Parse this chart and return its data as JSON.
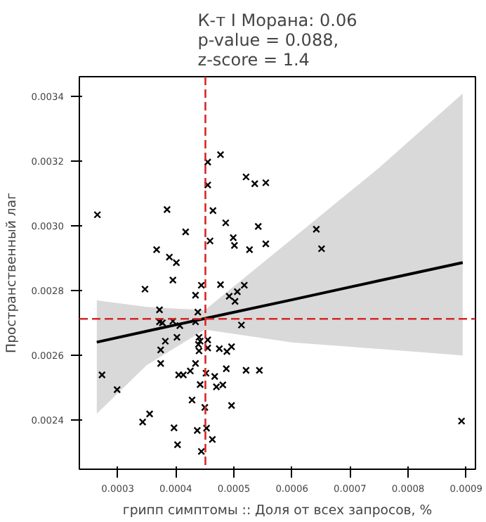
{
  "chart_data": {
    "type": "scatter",
    "title": "К-т I Морана: 0.06\np-value = 0.088,\nz-score = 1.4",
    "xlabel": "грипп симптомы :: Доля от всех запросов, %",
    "ylabel": "Пространственный лаг",
    "xlim": [
      0.000234,
      0.000916
    ],
    "ylim": [
      0.002248,
      0.003462
    ],
    "xticks": [
      {
        "value": 0.0003,
        "label": "0.0003"
      },
      {
        "value": 0.0004,
        "label": "0.0004"
      },
      {
        "value": 0.0005,
        "label": "0.0005"
      },
      {
        "value": 0.0006,
        "label": "0.0006"
      },
      {
        "value": 0.0007,
        "label": "0.0007"
      },
      {
        "value": 0.0008,
        "label": "0.0008"
      },
      {
        "value": 0.0009,
        "label": "0.0009"
      }
    ],
    "yticks": [
      {
        "value": 0.0024,
        "label": "0.0024"
      },
      {
        "value": 0.0026,
        "label": "0.0026"
      },
      {
        "value": 0.0028,
        "label": "0.0028"
      },
      {
        "value": 0.003,
        "label": "0.0030"
      },
      {
        "value": 0.0032,
        "label": "0.0032"
      },
      {
        "value": 0.0034,
        "label": "0.0034"
      }
    ],
    "marker": "cross",
    "grid": false,
    "series": [
      {
        "color": "#000000",
        "x": [
          0.000265,
          0.000385,
          0.000417,
          0.000367,
          0.000389,
          0.000401,
          0.000395,
          0.000347,
          0.000372,
          0.000444,
          0.000434,
          0.000438,
          0.000455,
          0.000477,
          0.000455,
          0.000464,
          0.000459,
          0.000486,
          0.000521,
          0.000536,
          0.000555,
          0.000499,
          0.000501,
          0.000527,
          0.000542,
          0.000555,
          0.000477,
          0.000518,
          0.000506,
          0.000492,
          0.000502,
          0.000642,
          0.000651,
          0.000372,
          0.000377,
          0.000395,
          0.000407,
          0.000434,
          0.000513,
          0.000382,
          0.000402,
          0.00044,
          0.000442,
          0.000439,
          0.000455,
          0.000455,
          0.00044,
          0.000374,
          0.000374,
          0.000475,
          0.000488,
          0.000496,
          0.000273,
          0.000299,
          0.000405,
          0.000413,
          0.000425,
          0.000434,
          0.000452,
          0.000467,
          0.000442,
          0.00047,
          0.000481,
          0.000487,
          0.000521,
          0.000544,
          0.000428,
          0.00045,
          0.000496,
          0.000355,
          0.000343,
          0.000397,
          0.000453,
          0.000437,
          0.000463,
          0.000403,
          0.000444,
          0.000892
        ],
        "values": [
          0.003035,
          0.003051,
          0.002982,
          0.002927,
          0.002904,
          0.002887,
          0.002833,
          0.002805,
          0.002741,
          0.002817,
          0.002786,
          0.002734,
          0.003198,
          0.003221,
          0.003127,
          0.003048,
          0.002954,
          0.00301,
          0.003152,
          0.003131,
          0.003134,
          0.002964,
          0.00294,
          0.002927,
          0.002999,
          0.002945,
          0.002819,
          0.002817,
          0.002797,
          0.002783,
          0.002767,
          0.00299,
          0.00293,
          0.002704,
          0.002701,
          0.002706,
          0.002692,
          0.002704,
          0.002694,
          0.002644,
          0.002656,
          0.002656,
          0.002644,
          0.002634,
          0.002648,
          0.002623,
          0.002614,
          0.002617,
          0.002575,
          0.002621,
          0.002612,
          0.002627,
          0.00254,
          0.002494,
          0.00254,
          0.00254,
          0.002552,
          0.002575,
          0.002545,
          0.002535,
          0.00251,
          0.002503,
          0.002509,
          0.002559,
          0.002554,
          0.002554,
          0.002462,
          0.002439,
          0.002445,
          0.002419,
          0.002394,
          0.002376,
          0.002375,
          0.002368,
          0.00234,
          0.002324,
          0.002303,
          0.002397
        ]
      },
      {
        "type": "line",
        "marker": "none",
        "color": "#000000",
        "x": [
          0.000264,
          0.00035,
          0.00045,
          0.0006,
          0.00075,
          0.000894
        ],
        "values": [
          0.002641,
          0.002675,
          0.002714,
          0.002772,
          0.002831,
          0.002887
        ],
        "lower": [
          0.00242,
          0.00257,
          0.00268,
          0.00264,
          0.00262,
          0.0026
        ],
        "upper": [
          0.00277,
          0.00275,
          0.00274,
          0.00296,
          0.00318,
          0.00341
        ]
      }
    ],
    "ref_lines": [
      {
        "axis": "x",
        "value": 0.000451,
        "color": "#d62728",
        "line_style": "dashed"
      },
      {
        "axis": "y",
        "value": 0.002713,
        "color": "#d62728",
        "line_style": "dashed"
      }
    ]
  }
}
